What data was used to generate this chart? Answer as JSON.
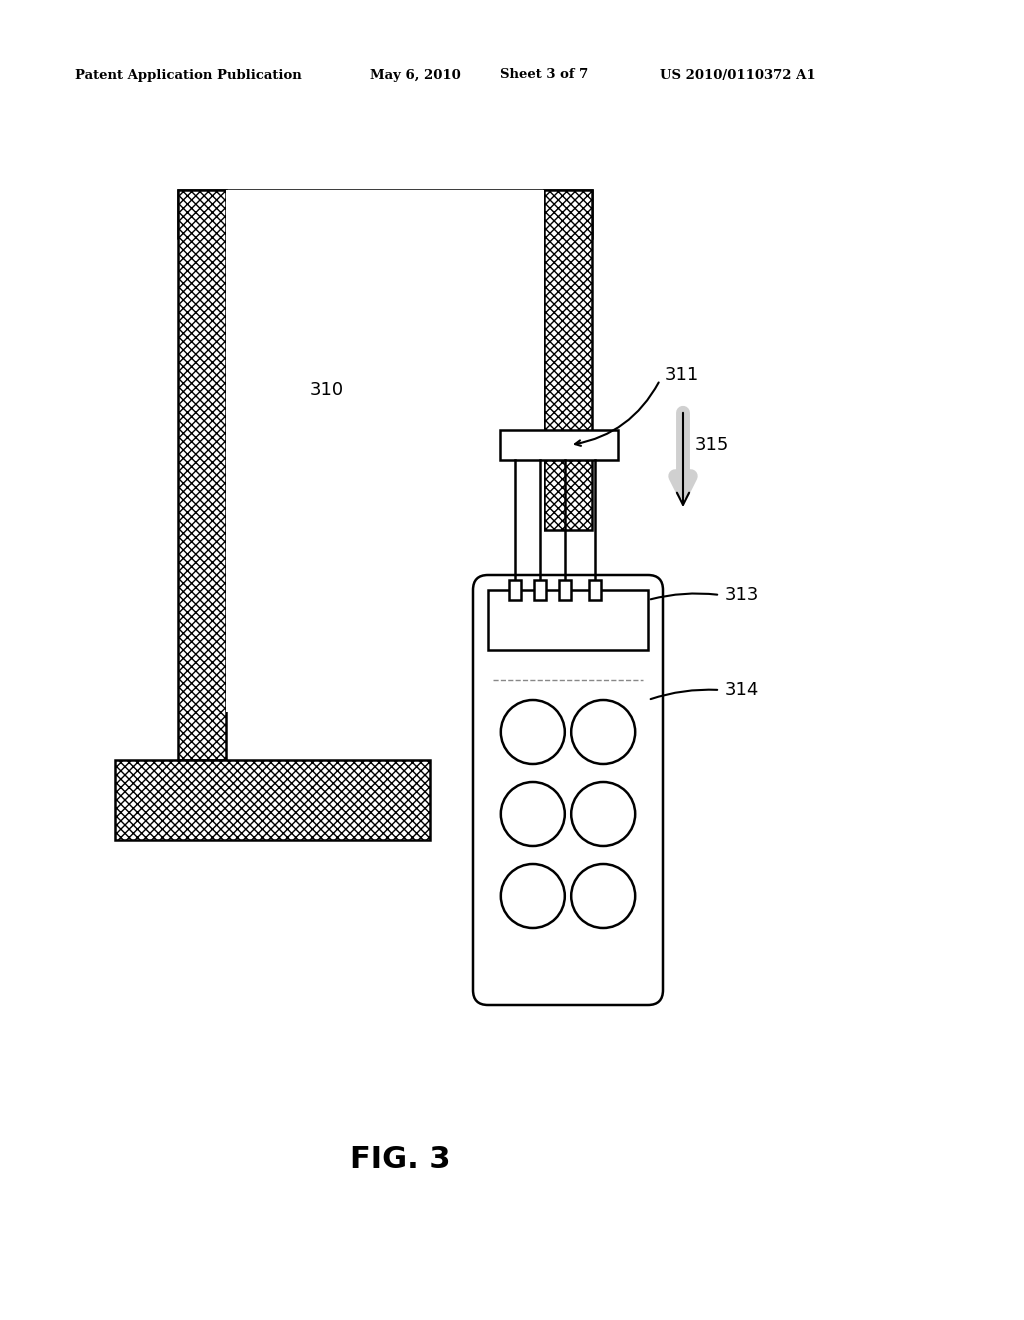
{
  "bg_color": "#ffffff",
  "line_color": "#000000",
  "header_text1": "Patent Application Publication",
  "header_text2": "May 6, 2010",
  "header_text3": "Sheet 3 of 7",
  "header_text4": "US 2010/0110372 A1",
  "fig_label": "FIG. 3",
  "label_310": "310",
  "label_311": "311",
  "label_313": "313",
  "label_314": "314",
  "label_315": "315"
}
